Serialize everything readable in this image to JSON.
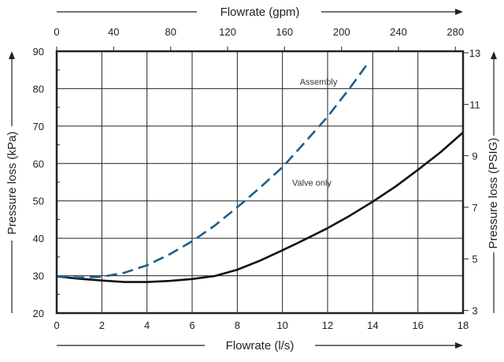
{
  "colors": {
    "valve_only": "#111111",
    "assembly": "#1a5e8c",
    "grid": "#222222",
    "arrow": "#222222"
  },
  "chart_data": {
    "type": "line",
    "title": "",
    "xlabel": "Flowrate (l/s)",
    "xlabel_top": "Flowrate (gpm)",
    "ylabel": "Pressure loss (kPa)",
    "ylabel_right": "Pressure loss (PSIG)",
    "xlim": [
      0,
      18
    ],
    "ylim": [
      20,
      90
    ],
    "x_ticks": [
      "0",
      "2",
      "4",
      "6",
      "8",
      "10",
      "12",
      "14",
      "16",
      "18"
    ],
    "y_ticks": [
      "20",
      "30",
      "40",
      "50",
      "60",
      "70",
      "80",
      "90"
    ],
    "top_ticks": [
      {
        "label": "0",
        "x": 0
      },
      {
        "label": "40",
        "x": 2.52
      },
      {
        "label": "80",
        "x": 5.05
      },
      {
        "label": "120",
        "x": 7.57
      },
      {
        "label": "160",
        "x": 10.09
      },
      {
        "label": "200",
        "x": 12.62
      },
      {
        "label": "240",
        "x": 15.14
      },
      {
        "label": "280",
        "x": 17.66
      }
    ],
    "right_ticks": [
      {
        "label": "3",
        "y": 20.7
      },
      {
        "label": "5",
        "y": 34.5
      },
      {
        "label": "7",
        "y": 48.3
      },
      {
        "label": "9",
        "y": 62.1
      },
      {
        "label": "11",
        "y": 75.8
      },
      {
        "label": "13",
        "y": 89.6
      }
    ],
    "grid": true,
    "series": [
      {
        "name": "Valve only",
        "style": "solid",
        "x": [
          0,
          1,
          2,
          3,
          4,
          5,
          6,
          7,
          8,
          9,
          10,
          11,
          12,
          13,
          14,
          15,
          16,
          17,
          18
        ],
        "y": [
          29.8,
          29.2,
          28.7,
          28.3,
          28.3,
          28.6,
          29.1,
          29.9,
          31.6,
          34.0,
          36.8,
          39.7,
          42.7,
          46.1,
          49.8,
          53.8,
          58.3,
          63.0,
          68.3
        ]
      },
      {
        "name": "Assembly",
        "style": "dashed",
        "x": [
          0,
          1,
          2,
          3,
          4,
          5,
          6,
          7,
          8,
          9,
          10,
          11,
          12,
          13,
          13.8
        ],
        "y": [
          29.8,
          29.5,
          29.7,
          30.8,
          32.8,
          35.7,
          39.2,
          43.4,
          48.3,
          53.5,
          59.0,
          65.7,
          72.5,
          80.3,
          86.9
        ]
      }
    ],
    "annotations": [
      {
        "text": "Assembly",
        "x": 11.6,
        "y": 81
      },
      {
        "text": "Valve only",
        "x": 11.3,
        "y": 54
      }
    ]
  }
}
